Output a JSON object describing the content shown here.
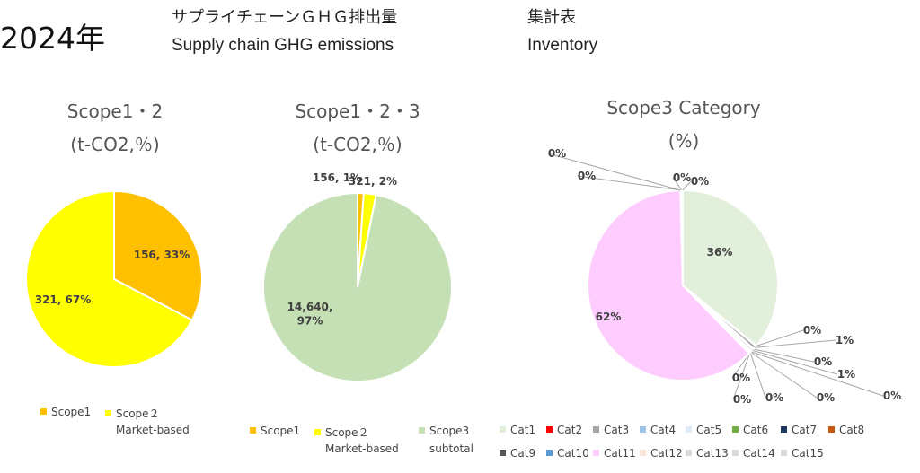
{
  "header": {
    "year": "2024年",
    "title_jp_left": "サプライチェーンＧＨＧ排出量",
    "title_jp_right": "集計表",
    "title_en_left": "Supply chain GHG emissions",
    "title_en_right": "Inventory"
  },
  "chart_data": [
    {
      "type": "pie",
      "title_line1": "Scope1・2",
      "title_line2": "(t-CO2,％)",
      "slices": [
        {
          "name": "Scope1",
          "value": 156,
          "label": "156, 33%",
          "color": "#FFC000"
        },
        {
          "name": "Scope２ Market-based",
          "value": 321,
          "label": "321, 67%",
          "color": "#FFFF00"
        }
      ],
      "legend": [
        {
          "line1": "Scope1",
          "line2": "",
          "color": "#FFC000"
        },
        {
          "line1": "Scope２",
          "line2": "Market-based",
          "color": "#FFFF00"
        }
      ],
      "legend_position": "bottom"
    },
    {
      "type": "pie",
      "title_line1": "Scope1・2・3",
      "title_line2": "(t-CO2,％)",
      "slices": [
        {
          "name": "Scope1",
          "value": 156,
          "label": "156, 1%",
          "color": "#FFC000"
        },
        {
          "name": "Scope２ Market-based",
          "value": 321,
          "label": "321, 2%",
          "color": "#FFFF00"
        },
        {
          "name": "Scope3 subtotal",
          "value": 14640,
          "label": "14,640, 97%",
          "color": "#C5E0B4"
        }
      ],
      "legend": [
        {
          "line1": "Scope1",
          "line2": "",
          "color": "#FFC000"
        },
        {
          "line1": "Scope２",
          "line2": "Market-based",
          "color": "#FFFF00"
        },
        {
          "line1": "Scope3",
          "line2": "subtotal",
          "color": "#C5E0B4"
        }
      ],
      "legend_position": "bottom"
    },
    {
      "type": "pie",
      "title_line1": "Scope3 Category",
      "title_line2": "(%)",
      "slices": [
        {
          "name": "Cat1",
          "value": 36,
          "label": "36%",
          "color": "#E2EFDA"
        },
        {
          "name": "Cat2",
          "value": 0.1,
          "label": "0%",
          "color": "#FF0000"
        },
        {
          "name": "Cat3",
          "value": 0.6,
          "label": "1%",
          "color": "#A5A5A5"
        },
        {
          "name": "Cat4",
          "value": 0.1,
          "label": "0%",
          "color": "#9DC3E6"
        },
        {
          "name": "Cat5",
          "value": 0.5,
          "label": "1%",
          "color": "#DEEBF7"
        },
        {
          "name": "Cat6",
          "value": 0.1,
          "label": "0%",
          "color": "#70AD47"
        },
        {
          "name": "Cat7",
          "value": 0.1,
          "label": "0%",
          "color": "#203864"
        },
        {
          "name": "Cat8",
          "value": 0.1,
          "label": "0%",
          "color": "#C55A11"
        },
        {
          "name": "Cat9",
          "value": 0.1,
          "label": "0%",
          "color": "#595959"
        },
        {
          "name": "Cat10",
          "value": 0.1,
          "label": "0%",
          "color": "#5B9BD5"
        },
        {
          "name": "Cat11",
          "value": 62,
          "label": "62%",
          "color": "#FFCCFF"
        },
        {
          "name": "Cat12",
          "value": 0.1,
          "label": "0%",
          "color": "#FBE5D6"
        },
        {
          "name": "Cat13",
          "value": 0.1,
          "label": "0%",
          "color": "#D9D9D9"
        },
        {
          "name": "Cat14",
          "value": 0.1,
          "label": "0%",
          "color": "#D9D9D9"
        },
        {
          "name": "Cat15",
          "value": 0.1,
          "label": "0%",
          "color": "#D9D9D9"
        }
      ],
      "legend_position": "bottom"
    }
  ]
}
